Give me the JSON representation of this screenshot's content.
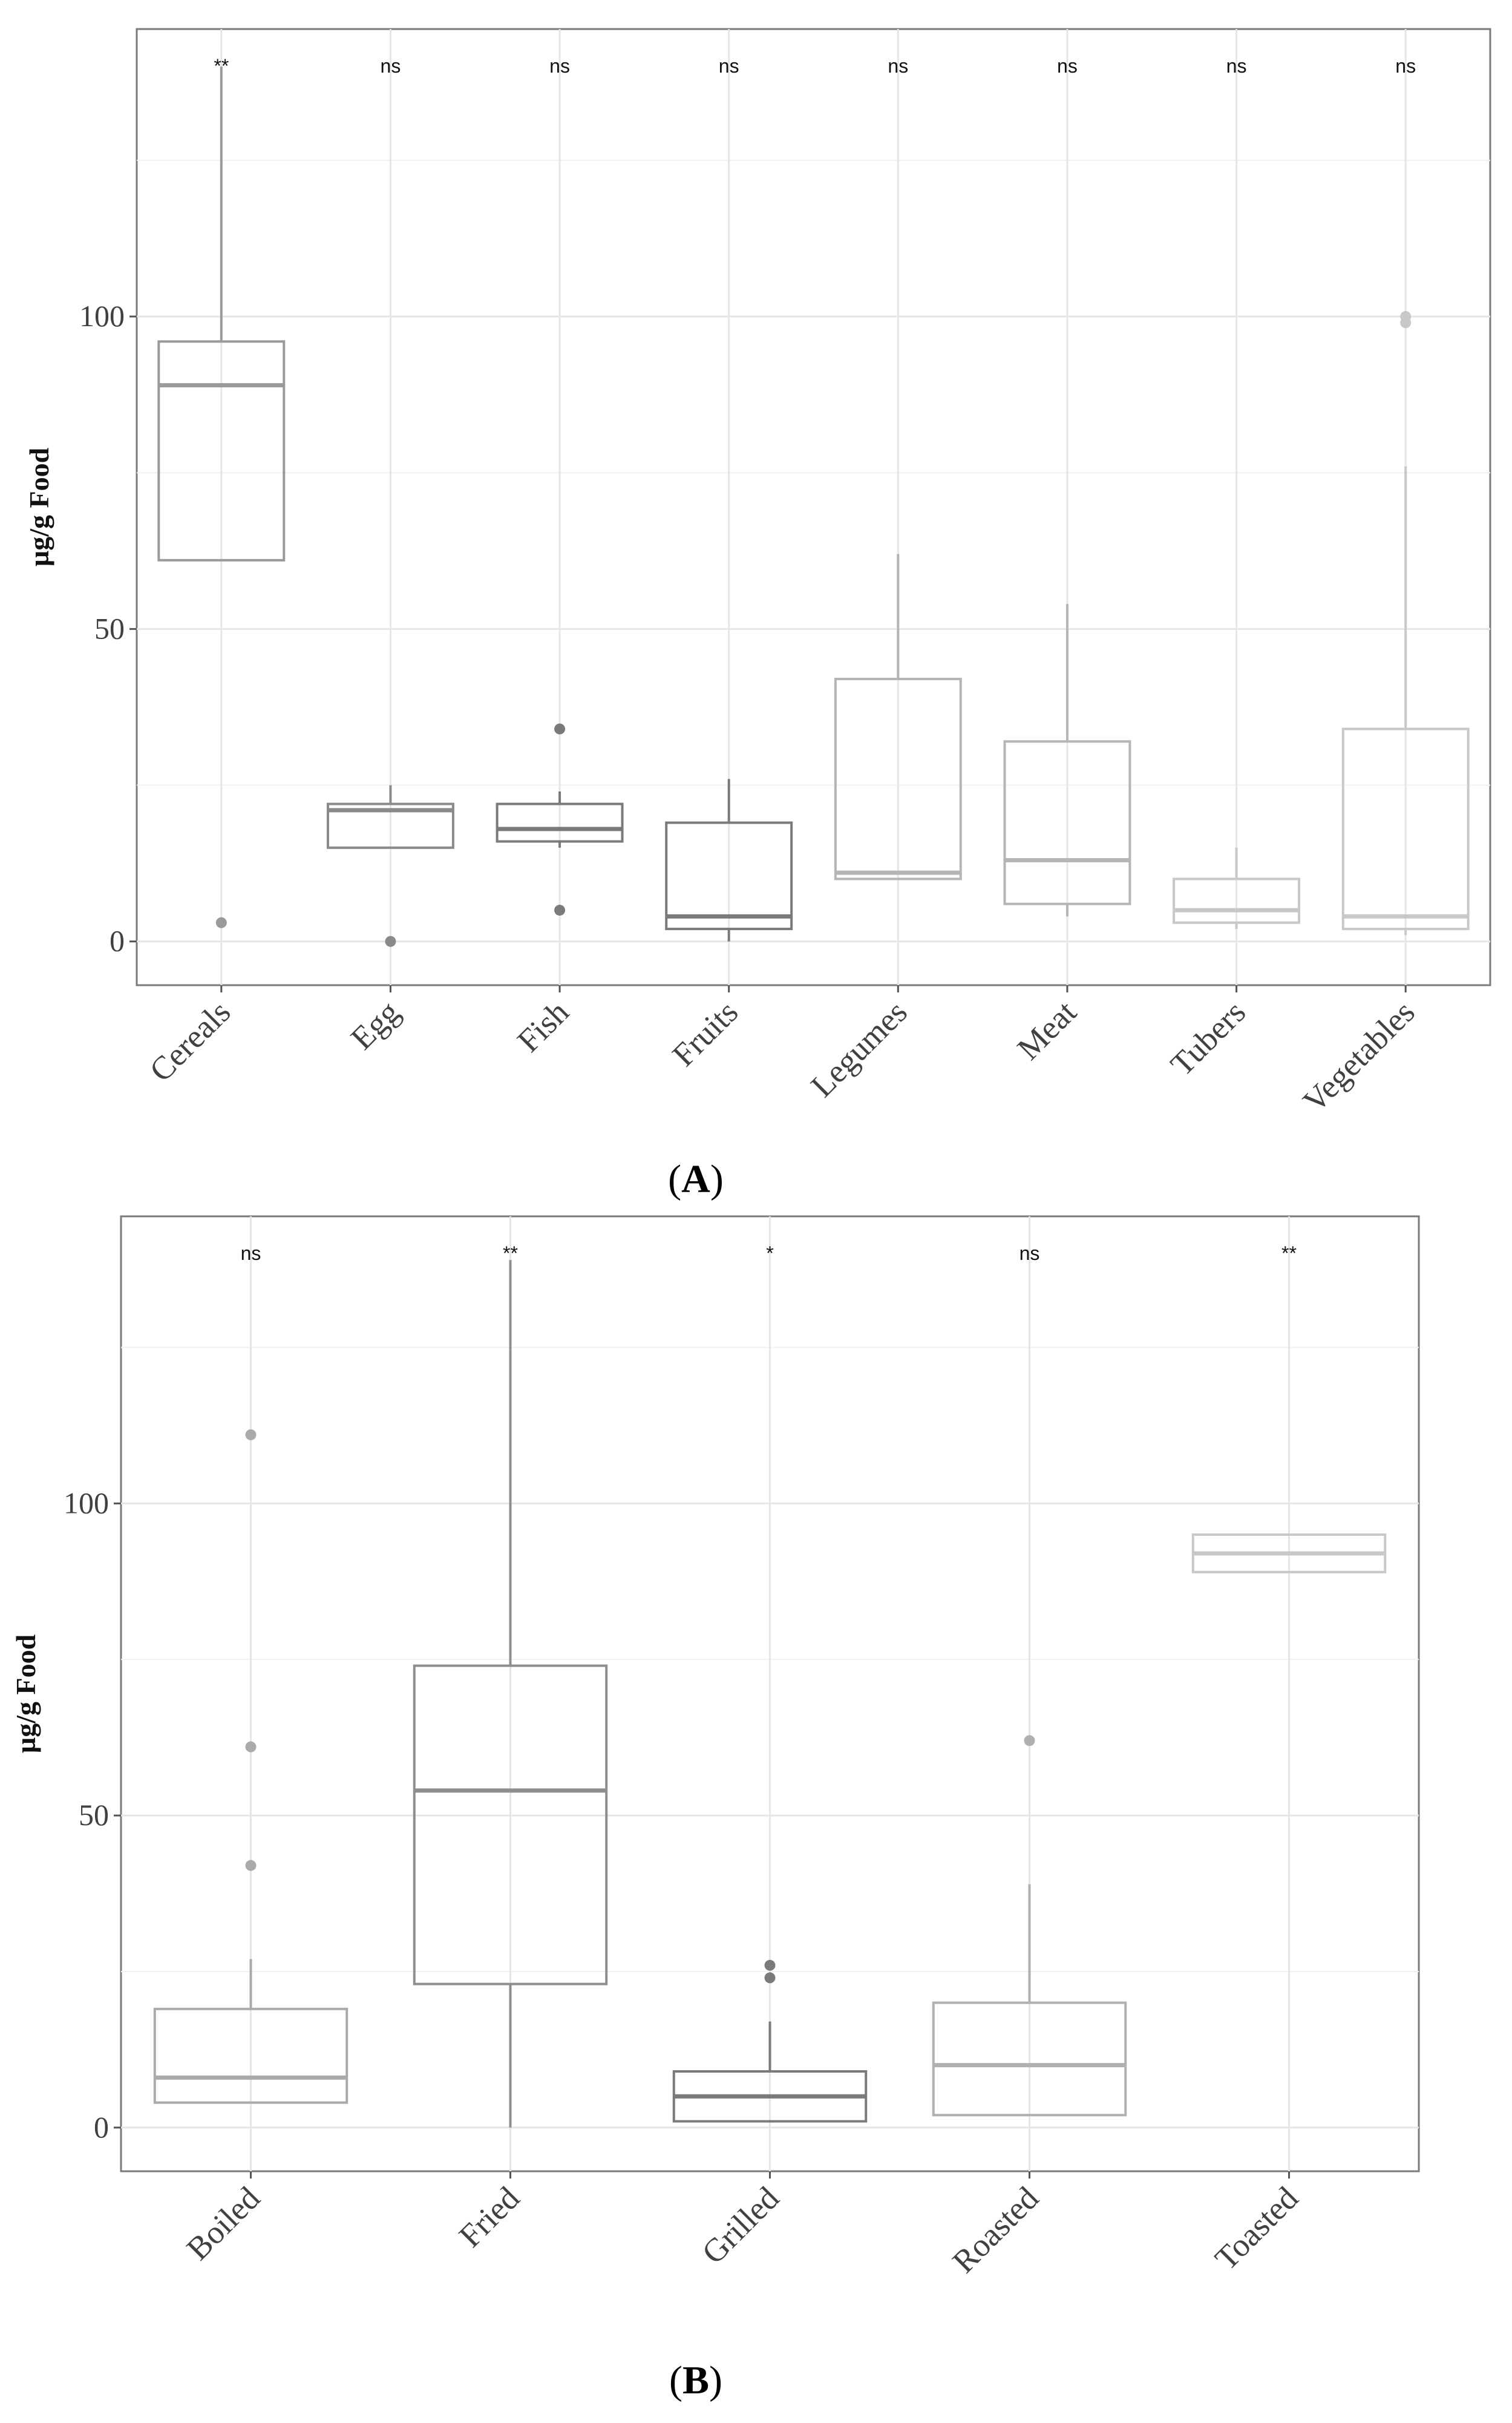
{
  "chart_data": [
    {
      "type": "boxplot",
      "panel_label": "A",
      "ylabel": "µg/g Food",
      "xlabel": "",
      "ylim": [
        -7,
        146
      ],
      "yticks": [
        0,
        50,
        100
      ],
      "grid": true,
      "categories": [
        "Cereals",
        "Egg",
        "Fish",
        "Fruits",
        "Legumes",
        "Meat",
        "Tubers",
        "Vegetables"
      ],
      "significance": [
        "**",
        "ns",
        "ns",
        "ns",
        "ns",
        "ns",
        "ns",
        "ns"
      ],
      "boxes": [
        {
          "whisker_low": 61,
          "q1": 61,
          "median": 89,
          "q3": 96,
          "whisker_high": 140,
          "outliers": [
            3
          ],
          "color": "#9a9a9a"
        },
        {
          "whisker_low": 15,
          "q1": 15,
          "median": 21,
          "q3": 22,
          "whisker_high": 25,
          "outliers": [
            0
          ],
          "color": "#8a8a8a"
        },
        {
          "whisker_low": 15,
          "q1": 16,
          "median": 18,
          "q3": 22,
          "whisker_high": 24,
          "outliers": [
            34,
            5
          ],
          "color": "#7a7a7a"
        },
        {
          "whisker_low": 0,
          "q1": 2,
          "median": 4,
          "q3": 19,
          "whisker_high": 26,
          "outliers": [],
          "color": "#7a7a7a"
        },
        {
          "whisker_low": 10,
          "q1": 10,
          "median": 11,
          "q3": 42,
          "whisker_high": 62,
          "outliers": [],
          "color": "#b5b5b5"
        },
        {
          "whisker_low": 4,
          "q1": 6,
          "median": 13,
          "q3": 32,
          "whisker_high": 54,
          "outliers": [],
          "color": "#b5b5b5"
        },
        {
          "whisker_low": 2,
          "q1": 3,
          "median": 5,
          "q3": 10,
          "whisker_high": 15,
          "outliers": [],
          "color": "#c8c8c8"
        },
        {
          "whisker_low": 1,
          "q1": 2,
          "median": 4,
          "q3": 34,
          "whisker_high": 76,
          "outliers": [
            99,
            100
          ],
          "color": "#c8c8c8"
        }
      ]
    },
    {
      "type": "boxplot",
      "panel_label": "B",
      "ylabel": "µg/g Food",
      "xlabel": "",
      "ylim": [
        -7,
        146
      ],
      "yticks": [
        0,
        50,
        100
      ],
      "grid": true,
      "categories": [
        "Boiled",
        "Fried",
        "Grilled",
        "Roasted",
        "Toasted"
      ],
      "significance": [
        "ns",
        "**",
        "*",
        "ns",
        "**"
      ],
      "boxes": [
        {
          "whisker_low": 4,
          "q1": 4,
          "median": 8,
          "q3": 19,
          "whisker_high": 27,
          "outliers": [
            111,
            61,
            42
          ],
          "color": "#aaaaaa"
        },
        {
          "whisker_low": 0,
          "q1": 23,
          "median": 54,
          "q3": 74,
          "whisker_high": 139,
          "outliers": [],
          "color": "#8e8e8e"
        },
        {
          "whisker_low": 1,
          "q1": 1,
          "median": 5,
          "q3": 9,
          "whisker_high": 17,
          "outliers": [
            26,
            24
          ],
          "color": "#7a7a7a"
        },
        {
          "whisker_low": 2,
          "q1": 2,
          "median": 10,
          "q3": 20,
          "whisker_high": 39,
          "outliers": [
            62
          ],
          "color": "#b0b0b0"
        },
        {
          "whisker_low": 89,
          "q1": 89,
          "median": 92,
          "q3": 95,
          "whisker_high": 95,
          "outliers": [],
          "color": "#c8c8c8"
        }
      ]
    }
  ],
  "captions": {
    "a": {
      "open": "(",
      "label": "A",
      "close": ")"
    },
    "b": {
      "open": "(",
      "label": "B",
      "close": ")"
    }
  }
}
